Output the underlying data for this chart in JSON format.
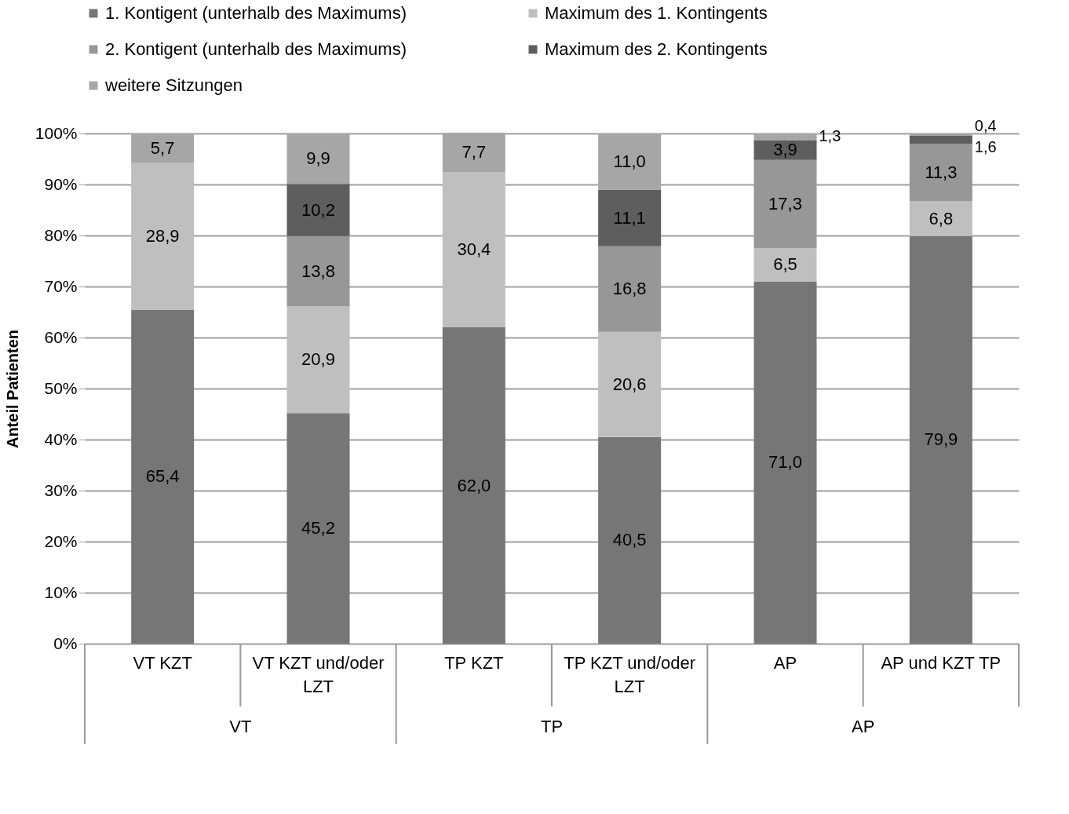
{
  "chart_data": {
    "type": "bar",
    "stacked": true,
    "ylabel": "Anteil Patienten",
    "categories": [
      "VT KZT",
      "VT KZT und/oder LZT",
      "TP KZT",
      "TP KZT und/oder LZT",
      "AP",
      "AP und KZT TP"
    ],
    "annotations": [
      "VT",
      "TP",
      "AP"
    ],
    "series": [
      {
        "name": "1. Kontigent (unterhalb des Maximums)",
        "color": "#767676",
        "values": [
          65.4,
          45.2,
          62.0,
          40.5,
          71.0,
          79.9
        ],
        "value_labels": [
          "65,4",
          "45,2",
          "62,0",
          "40,5",
          "71,0",
          "79,9"
        ]
      },
      {
        "name": "Maximum des 1. Kontingents",
        "color": "#bfbfbf",
        "values": [
          28.9,
          20.9,
          30.4,
          20.6,
          6.5,
          6.8
        ],
        "value_labels": [
          "28,9",
          "20,9",
          "30,4",
          "20,6",
          "6,5",
          "6,8"
        ]
      },
      {
        "name": "2. Kontigent (unterhalb des Maximums)",
        "color": "#979797",
        "values": [
          null,
          13.8,
          null,
          16.8,
          17.3,
          11.3
        ],
        "value_labels": [
          null,
          "13,8",
          null,
          "16,8",
          "17,3",
          "11,3"
        ]
      },
      {
        "name": "Maximum des 2. Kontingents",
        "color": "#5e5e5e",
        "values": [
          null,
          10.2,
          null,
          11.1,
          3.9,
          1.6
        ],
        "value_labels": [
          null,
          "10,2",
          null,
          "11,1",
          "3,9",
          "1,6"
        ]
      },
      {
        "name": "weitere Sitzungen",
        "color": "#a6a6a6",
        "values": [
          5.7,
          9.9,
          7.7,
          11.0,
          1.3,
          0.4
        ],
        "value_labels": [
          "5,7",
          "9,9",
          "7,7",
          "11,0",
          "1,3",
          "0,4"
        ]
      }
    ],
    "ylim": [
      0,
      100
    ],
    "yticks": [
      {
        "value": 0,
        "label": "0%"
      },
      {
        "value": 10,
        "label": "10%"
      },
      {
        "value": 20,
        "label": "20%"
      },
      {
        "value": 30,
        "label": "30%"
      },
      {
        "value": 40,
        "label": "40%"
      },
      {
        "value": 50,
        "label": "50%"
      },
      {
        "value": 60,
        "label": "60%"
      },
      {
        "value": 70,
        "label": "70%"
      },
      {
        "value": 80,
        "label": "80%"
      },
      {
        "value": 90,
        "label": "90%"
      },
      {
        "value": 100,
        "label": "100%"
      }
    ],
    "grid": "y",
    "legend": "top"
  }
}
